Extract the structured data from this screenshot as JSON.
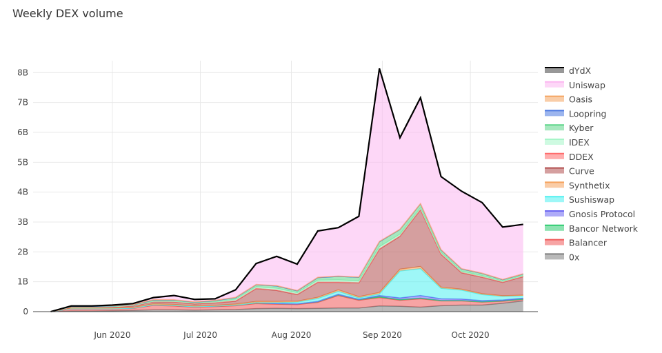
{
  "chart_data": {
    "type": "area",
    "title": "Weekly DEX volume",
    "stacked": true,
    "grid": true,
    "legend_position": "right",
    "y_unit": "B",
    "ylim": [
      0,
      8.4
    ],
    "y_ticks": [
      {
        "value": 0,
        "label": "0"
      },
      {
        "value": 1,
        "label": "1B"
      },
      {
        "value": 2,
        "label": "2B"
      },
      {
        "value": 3,
        "label": "3B"
      },
      {
        "value": 4,
        "label": "4B"
      },
      {
        "value": 5,
        "label": "5B"
      },
      {
        "value": 6,
        "label": "6B"
      },
      {
        "value": 7,
        "label": "7B"
      },
      {
        "value": 8,
        "label": "8B"
      }
    ],
    "x_ticks": [
      {
        "date": "2020-06-01",
        "label": "Jun 2020"
      },
      {
        "date": "2020-07-01",
        "label": "Jul 2020"
      },
      {
        "date": "2020-08-01",
        "label": "Aug 2020"
      },
      {
        "date": "2020-09-01",
        "label": "Sep 2020"
      },
      {
        "date": "2020-10-01",
        "label": "Oct 2020"
      }
    ],
    "x_range": [
      "2020-05-05",
      "2020-10-24"
    ],
    "x": [
      "2020-05-11",
      "2020-05-18",
      "2020-05-25",
      "2020-06-01",
      "2020-06-08",
      "2020-06-15",
      "2020-06-22",
      "2020-06-29",
      "2020-07-06",
      "2020-07-13",
      "2020-07-20",
      "2020-07-27",
      "2020-08-03",
      "2020-08-10",
      "2020-08-17",
      "2020-08-24",
      "2020-08-31",
      "2020-09-07",
      "2020-09-14",
      "2020-09-21",
      "2020-09-28",
      "2020-10-05",
      "2020-10-12",
      "2020-10-19"
    ],
    "series": [
      {
        "name": "0x",
        "color": "#7f7f7f",
        "values": [
          0,
          0.02,
          0.02,
          0.03,
          0.04,
          0.06,
          0.06,
          0.05,
          0.06,
          0.07,
          0.1,
          0.11,
          0.1,
          0.11,
          0.12,
          0.12,
          0.19,
          0.18,
          0.15,
          0.2,
          0.22,
          0.22,
          0.28,
          0.36
        ]
      },
      {
        "name": "Balancer",
        "color": "#f05a5a",
        "values": [
          0,
          0.07,
          0.07,
          0.06,
          0.07,
          0.15,
          0.13,
          0.1,
          0.11,
          0.13,
          0.17,
          0.14,
          0.14,
          0.2,
          0.42,
          0.26,
          0.28,
          0.2,
          0.28,
          0.16,
          0.14,
          0.1,
          0.07,
          0.05
        ]
      },
      {
        "name": "Bancor Network",
        "color": "#2ecc71",
        "values": [
          0,
          0.01,
          0.01,
          0.01,
          0.01,
          0.02,
          0.02,
          0.02,
          0.02,
          0.02,
          0.03,
          0.02,
          0.02,
          0.03,
          0.04,
          0.03,
          0.03,
          0.02,
          0.02,
          0.01,
          0.01,
          0.01,
          0.01,
          0.01
        ]
      },
      {
        "name": "Gnosis Protocol",
        "color": "#6b66f2",
        "values": [
          0,
          0,
          0,
          0,
          0,
          0,
          0,
          0,
          0,
          0,
          0,
          0,
          0,
          0,
          0,
          0,
          0.04,
          0.06,
          0.09,
          0.06,
          0.05,
          0.04,
          0.03,
          0.03
        ]
      },
      {
        "name": "Sushiswap",
        "color": "#4ff0f0",
        "values": [
          0,
          0,
          0,
          0,
          0,
          0,
          0,
          0,
          0,
          0,
          0,
          0.03,
          0.06,
          0.1,
          0.1,
          0.05,
          0.05,
          0.9,
          0.9,
          0.35,
          0.3,
          0.2,
          0.12,
          0.08
        ]
      },
      {
        "name": "Synthetix",
        "color": "#f5a25c",
        "values": [
          0,
          0.02,
          0.02,
          0.02,
          0.02,
          0.03,
          0.03,
          0.02,
          0.02,
          0.03,
          0.04,
          0.04,
          0.03,
          0.04,
          0.05,
          0.04,
          0.05,
          0.06,
          0.07,
          0.04,
          0.03,
          0.03,
          0.02,
          0.02
        ]
      },
      {
        "name": "Curve",
        "color": "#b25151",
        "values": [
          0,
          0.02,
          0.02,
          0.03,
          0.05,
          0.07,
          0.08,
          0.07,
          0.08,
          0.1,
          0.43,
          0.37,
          0.22,
          0.5,
          0.25,
          0.46,
          1.45,
          1.1,
          1.9,
          1.1,
          0.55,
          0.55,
          0.45,
          0.62
        ]
      },
      {
        "name": "DDEX",
        "color": "#ff6b6b",
        "values": [
          0,
          0.01,
          0.01,
          0.01,
          0.01,
          0.01,
          0.01,
          0.01,
          0.01,
          0.01,
          0.01,
          0.01,
          0.01,
          0.01,
          0.01,
          0.01,
          0.01,
          0.01,
          0.01,
          0.01,
          0.01,
          0.01,
          0.01,
          0.01
        ]
      },
      {
        "name": "IDEX",
        "color": "#a6f5c8",
        "values": [
          0,
          0.01,
          0.01,
          0.01,
          0.01,
          0.01,
          0.02,
          0.02,
          0.03,
          0.05,
          0.05,
          0.06,
          0.05,
          0.06,
          0.07,
          0.06,
          0.07,
          0.06,
          0.05,
          0.05,
          0.04,
          0.04,
          0.03,
          0.03
        ]
      },
      {
        "name": "Kyber",
        "color": "#5fd68a",
        "values": [
          0,
          0.02,
          0.02,
          0.02,
          0.02,
          0.04,
          0.04,
          0.03,
          0.04,
          0.06,
          0.07,
          0.08,
          0.07,
          0.09,
          0.12,
          0.12,
          0.17,
          0.16,
          0.14,
          0.09,
          0.08,
          0.08,
          0.05,
          0.05
        ]
      },
      {
        "name": "Loopring",
        "color": "#4a78e0",
        "values": [
          0,
          0,
          0,
          0,
          0,
          0,
          0,
          0,
          0,
          0,
          0,
          0,
          0,
          0,
          0,
          0,
          0,
          0,
          0,
          0,
          0,
          0,
          0,
          0
        ]
      },
      {
        "name": "Oasis",
        "color": "#f4a460",
        "values": [
          0,
          0.01,
          0.01,
          0.01,
          0.01,
          0.01,
          0.01,
          0.01,
          0.01,
          0.01,
          0.01,
          0.01,
          0.01,
          0.01,
          0.01,
          0.01,
          0.01,
          0.01,
          0.01,
          0.01,
          0.01,
          0.01,
          0.01,
          0.01
        ]
      },
      {
        "name": "Uniswap",
        "color": "#fcb6f1",
        "values": [
          0,
          0,
          0,
          0.02,
          0.03,
          0.07,
          0.14,
          0.08,
          0.05,
          0.25,
          0.7,
          0.98,
          0.88,
          1.55,
          1.62,
          2.03,
          5.79,
          3.06,
          3.54,
          2.44,
          2.59,
          2.36,
          1.75,
          1.65
        ]
      },
      {
        "name": "dYdX",
        "color": "#444444",
        "values": [
          0,
          0,
          0,
          0,
          0,
          0,
          0,
          0,
          0,
          0,
          0,
          0,
          0,
          0,
          0,
          0,
          0,
          0,
          0,
          0,
          0,
          0,
          0,
          0
        ]
      }
    ]
  }
}
